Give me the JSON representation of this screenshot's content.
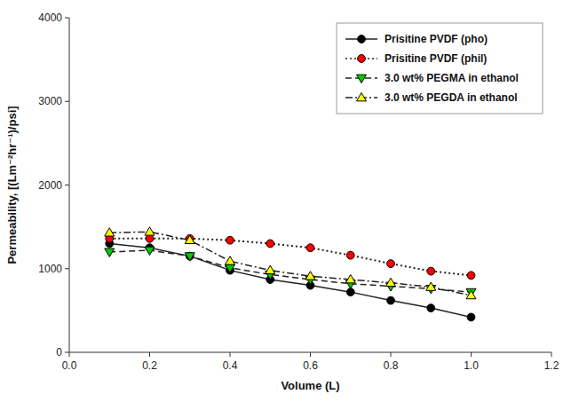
{
  "chart_data": {
    "type": "line",
    "xlabel": "Volume (L)",
    "ylabel": "Permeability, [(Lm⁻²hr⁻¹)/psi]",
    "x": [
      0.1,
      0.2,
      0.3,
      0.4,
      0.5,
      0.6,
      0.7,
      0.8,
      0.9,
      1.0
    ],
    "series": [
      {
        "name": "Prisitine PVDF (pho)",
        "color": "#000000",
        "marker": "circle",
        "line_style": "solid",
        "values": [
          1300,
          1250,
          1150,
          980,
          870,
          800,
          720,
          620,
          530,
          420
        ]
      },
      {
        "name": "Prisitine PVDF (phil)",
        "color": "#ff0000",
        "marker": "circle",
        "line_style": "dotted",
        "values": [
          1360,
          1360,
          1360,
          1340,
          1300,
          1250,
          1160,
          1060,
          970,
          920
        ]
      },
      {
        "name": "3.0 wt% PEGMA in ethanol",
        "color": "#00cc00",
        "marker": "triangle-down",
        "line_style": "dashed",
        "values": [
          1200,
          1220,
          1150,
          1010,
          930,
          870,
          820,
          790,
          760,
          720
        ]
      },
      {
        "name": "3.0 wt% PEGDA in ethanol",
        "color": "#ffff00",
        "marker": "triangle-up",
        "line_style": "dashdot",
        "values": [
          1430,
          1440,
          1340,
          1090,
          980,
          910,
          870,
          830,
          780,
          680
        ]
      }
    ],
    "xlim": [
      0.0,
      1.2
    ],
    "ylim": [
      0,
      4000
    ],
    "xticks": [
      {
        "value": 0,
        "label": "0.0"
      },
      0.2,
      0.4,
      0.6,
      0.8,
      {
        "value": 1,
        "label": "1.0"
      },
      1.2
    ],
    "yticks": [
      0,
      1000,
      2000,
      3000,
      4000
    ],
    "grid": false,
    "legend": "upper right"
  }
}
